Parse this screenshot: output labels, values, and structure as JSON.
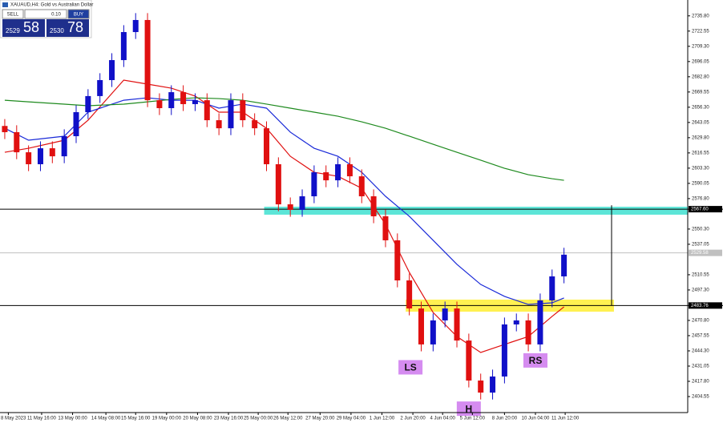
{
  "chart_data": {
    "type": "candlestick",
    "title": "XAUAUD,H4: Gold vs Australian Dollar",
    "trade_panel": {
      "sell": "SELL",
      "lot": "0.10",
      "buy": "BUY",
      "bid_big": "2529",
      "bid_small": "58",
      "ask_big": "2530",
      "ask_small": "78"
    },
    "up_color": "#1010c8",
    "down_color": "#e01010",
    "xlim": [
      -0.4,
      57.4
    ],
    "ylim": [
      2390.6,
      2749.6
    ],
    "x": [
      0,
      1,
      2,
      3,
      4,
      5,
      6,
      7,
      8,
      9,
      10,
      11,
      12,
      13,
      14,
      15,
      16,
      17,
      18,
      19,
      20,
      21,
      22,
      23,
      24,
      25,
      26,
      27,
      28,
      29,
      30,
      31,
      32,
      33,
      34,
      35,
      36,
      37,
      38,
      39,
      40,
      41,
      42,
      43,
      44,
      45,
      46,
      47
    ],
    "open": [
      2640.0,
      2634.6,
      2617.1,
      2606.7,
      2620.6,
      2613.6,
      2631.1,
      2652.0,
      2666.0,
      2679.9,
      2697.3,
      2721.7,
      2732.2,
      2662.4,
      2655.5,
      2669.4,
      2659.0,
      2662.4,
      2645.0,
      2638.0,
      2662.4,
      2645.0,
      2638.0,
      2606.7,
      2571.8,
      2567.0,
      2578.8,
      2599.7,
      2592.7,
      2606.7,
      2596.2,
      2578.8,
      2561.4,
      2540.5,
      2505.6,
      2481.2,
      2449.9,
      2470.8,
      2481.2,
      2453.3,
      2418.5,
      2408.0,
      2422.0,
      2467.3,
      2470.8,
      2449.9,
      2488.2,
      2509.1
    ],
    "high": [
      2646.0,
      2640.6,
      2623.1,
      2626.6,
      2626.6,
      2637.1,
      2658.0,
      2672.0,
      2685.9,
      2703.3,
      2727.7,
      2738.2,
      2738.2,
      2668.4,
      2675.4,
      2675.4,
      2668.4,
      2668.4,
      2651.0,
      2668.4,
      2668.4,
      2651.0,
      2644.0,
      2612.7,
      2577.8,
      2584.8,
      2605.7,
      2605.7,
      2612.7,
      2612.7,
      2602.2,
      2584.8,
      2567.4,
      2546.5,
      2511.6,
      2487.2,
      2476.8,
      2487.2,
      2487.2,
      2459.3,
      2424.5,
      2428.0,
      2473.3,
      2476.8,
      2476.8,
      2494.2,
      2515.1,
      2534.0
    ],
    "low": [
      2628.6,
      2611.1,
      2600.7,
      2600.7,
      2607.6,
      2607.6,
      2625.1,
      2646.0,
      2660.0,
      2673.9,
      2691.3,
      2715.7,
      2656.4,
      2649.5,
      2649.5,
      2653.0,
      2653.0,
      2639.0,
      2632.0,
      2632.0,
      2639.0,
      2632.0,
      2600.7,
      2565.8,
      2561.0,
      2561.0,
      2572.8,
      2586.7,
      2586.7,
      2590.2,
      2572.8,
      2555.4,
      2534.5,
      2499.6,
      2475.2,
      2443.9,
      2443.9,
      2464.8,
      2447.3,
      2412.5,
      2402.0,
      2402.0,
      2416.0,
      2461.3,
      2443.9,
      2443.9,
      2482.2,
      2503.1
    ],
    "close": [
      2634.6,
      2617.1,
      2606.7,
      2620.6,
      2613.6,
      2631.1,
      2652.0,
      2666.0,
      2679.9,
      2697.3,
      2721.7,
      2732.2,
      2662.4,
      2655.5,
      2669.4,
      2659.0,
      2662.4,
      2645.0,
      2638.0,
      2662.4,
      2645.0,
      2638.0,
      2606.7,
      2571.8,
      2567.0,
      2578.8,
      2599.7,
      2592.7,
      2606.7,
      2596.2,
      2578.8,
      2561.4,
      2540.5,
      2505.6,
      2481.2,
      2449.9,
      2470.8,
      2481.2,
      2453.3,
      2418.5,
      2408.0,
      2422.0,
      2467.3,
      2470.8,
      2449.9,
      2488.2,
      2509.1,
      2528.0
    ],
    "series": [
      {
        "color": "#e01010",
        "x": [
          0,
          2,
          5,
          7,
          10,
          12,
          14,
          16,
          18,
          20,
          22,
          24,
          26,
          28,
          30,
          32,
          34,
          36,
          38,
          40,
          42,
          44,
          46,
          47
        ],
        "values": [
          2617.1,
          2620.6,
          2627.6,
          2645.0,
          2679.9,
          2676.4,
          2672.9,
          2666.0,
          2652.0,
          2652.0,
          2638.0,
          2613.6,
          2599.7,
          2596.2,
          2585.8,
          2554.4,
          2512.6,
          2477.7,
          2456.8,
          2442.9,
          2449.9,
          2456.8,
          2474.3,
          2482.6
        ]
      },
      {
        "color": "#1a2ad8",
        "x": [
          0,
          2,
          5,
          7,
          10,
          12,
          14,
          16,
          18,
          20,
          22,
          24,
          26,
          28,
          30,
          32,
          34,
          36,
          38,
          40,
          42,
          44,
          46,
          47
        ],
        "values": [
          2638.0,
          2627.6,
          2631.1,
          2652.0,
          2662.4,
          2664.5,
          2662.4,
          2662.4,
          2655.5,
          2659.0,
          2655.5,
          2634.6,
          2620.6,
          2613.6,
          2599.7,
          2578.8,
          2561.4,
          2540.5,
          2519.6,
          2502.1,
          2491.7,
          2484.7,
          2486.1,
          2490.3
        ]
      },
      {
        "color": "#1e8a1e",
        "x": [
          0,
          2,
          5,
          7,
          10,
          12,
          14,
          16,
          18,
          20,
          22,
          24,
          26,
          28,
          30,
          32,
          34,
          36,
          38,
          40,
          42,
          44,
          46,
          47
        ],
        "values": [
          2662.4,
          2661.0,
          2659.0,
          2657.6,
          2659.0,
          2661.0,
          2663.1,
          2664.5,
          2663.8,
          2662.4,
          2659.0,
          2655.5,
          2652.0,
          2648.5,
          2643.6,
          2638.0,
          2631.1,
          2624.1,
          2617.1,
          2610.2,
          2603.2,
          2597.6,
          2594.1,
          2592.7
        ]
      }
    ],
    "zones": [
      {
        "color": "#40e0d0",
        "x": [
          21.8,
          57.4
        ],
        "y": [
          2562.8,
          2569.7
        ]
      },
      {
        "color": "#ffee33",
        "x": [
          33.7,
          51.2
        ],
        "y": [
          2478.4,
          2488.9
        ]
      }
    ],
    "levels": [
      {
        "value": 2567.6,
        "label": "2567.60"
      },
      {
        "value": 2483.76,
        "label": "2483.76"
      }
    ],
    "current_price": {
      "value": 2529.58,
      "label": "2529.58"
    },
    "measure": {
      "x": 51.0,
      "y": [
        2483.76,
        2571.0
      ]
    },
    "annotations": [
      {
        "text": "LS",
        "x": 34.1,
        "y": 2430.0
      },
      {
        "text": "H",
        "x": 39.0,
        "y": 2394.0
      },
      {
        "text": "RS",
        "x": 44.6,
        "y": 2436.0
      }
    ],
    "yticks": [
      {
        "value": 2404.55,
        "label": "2404.55"
      },
      {
        "value": 2417.8,
        "label": "2417.80"
      },
      {
        "value": 2431.05,
        "label": "2431.05"
      },
      {
        "value": 2444.3,
        "label": "2444.30"
      },
      {
        "value": 2457.55,
        "label": "2457.55"
      },
      {
        "value": 2470.8,
        "label": "2470.80"
      },
      {
        "value": 2497.3,
        "label": "2497.30"
      },
      {
        "value": 2510.55,
        "label": "2510.55"
      },
      {
        "value": 2537.05,
        "label": "2537.05"
      },
      {
        "value": 2550.3,
        "label": "2550.30"
      },
      {
        "value": 2576.8,
        "label": "2576.80"
      },
      {
        "value": 2590.05,
        "label": "2590.05"
      },
      {
        "value": 2603.3,
        "label": "2603.30"
      },
      {
        "value": 2616.55,
        "label": "2616.55"
      },
      {
        "value": 2629.8,
        "label": "2629.80"
      },
      {
        "value": 2643.05,
        "label": "2643.05"
      },
      {
        "value": 2656.3,
        "label": "2656.30"
      },
      {
        "value": 2669.55,
        "label": "2669.55"
      },
      {
        "value": 2682.8,
        "label": "2682.80"
      },
      {
        "value": 2696.05,
        "label": "2696.05"
      },
      {
        "value": 2709.3,
        "label": "2709.30"
      },
      {
        "value": 2722.55,
        "label": "2722.55"
      },
      {
        "value": 2735.8,
        "label": "2735.80"
      }
    ],
    "xticks": [
      {
        "value": 0.3,
        "label": "8 May 2023"
      },
      {
        "value": 3.1,
        "label": "11 May 16:00"
      },
      {
        "value": 5.7,
        "label": "13 May 00:00"
      },
      {
        "value": 8.5,
        "label": "14 May 08:00"
      },
      {
        "value": 11.0,
        "label": "15 May 16:00"
      },
      {
        "value": 13.6,
        "label": "19 May 00:00"
      },
      {
        "value": 16.2,
        "label": "20 May 08:00"
      },
      {
        "value": 18.8,
        "label": "23 May 16:00"
      },
      {
        "value": 21.3,
        "label": "25 May 00:00"
      },
      {
        "value": 23.8,
        "label": "26 May 12:00"
      },
      {
        "value": 26.5,
        "label": "27 May 20:00"
      },
      {
        "value": 29.1,
        "label": "29 May 04:00"
      },
      {
        "value": 31.7,
        "label": "1 Jun 12:00"
      },
      {
        "value": 34.3,
        "label": "2 Jun 20:00"
      },
      {
        "value": 36.8,
        "label": "4 Jun 04:00"
      },
      {
        "value": 39.3,
        "label": "5 Jun 12:00"
      },
      {
        "value": 42.0,
        "label": "8 Jun 20:00"
      },
      {
        "value": 44.6,
        "label": "10 Jun 04:00"
      },
      {
        "value": 47.1,
        "label": "11 Jun 12:00"
      }
    ]
  }
}
